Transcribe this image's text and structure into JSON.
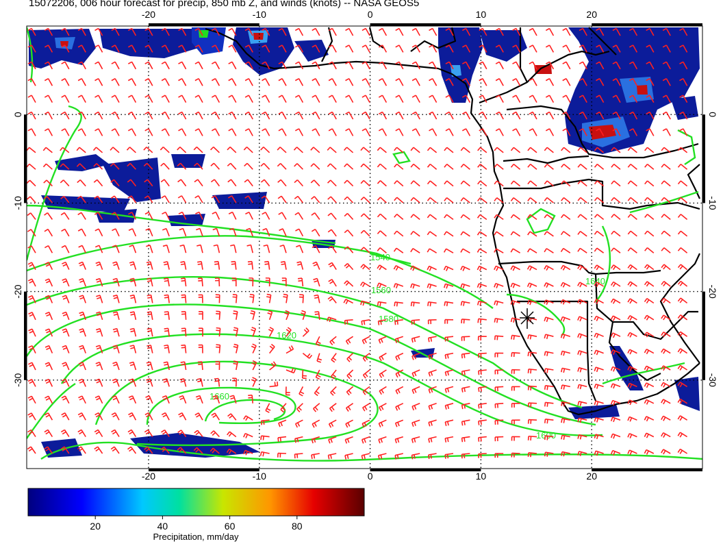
{
  "title": "15072206, 006 hour forecast for precip, 850 mb Z, and winds (knots) -- NASA GEOS5",
  "map": {
    "projection": "lat-lon",
    "lon_range": [
      -31,
      30
    ],
    "lat_range": [
      -40,
      10
    ],
    "lon_ticks": [
      "-20",
      "-10",
      "0",
      "10",
      "20"
    ],
    "lat_ticks": [
      "0",
      "-10",
      "-20",
      "-30"
    ],
    "gridlines": "dotted every 10 degrees",
    "contour_color": "#00ff00",
    "barb_color": "#ff0000",
    "land_outline_color": "#000000",
    "contour_labels": [
      "1540",
      "1560",
      "1580",
      "1600",
      "1620",
      "1640",
      "1660"
    ],
    "high_center_label": "1660",
    "marker": "asterisk near 15E 23S"
  },
  "colorbar": {
    "label": "Precipitation, mm/day",
    "ticks": [
      "20",
      "40",
      "60",
      "80"
    ],
    "range": [
      0,
      100
    ],
    "colors": [
      "#00007f",
      "#0000ff",
      "#00c8ff",
      "#00e0a0",
      "#c8e600",
      "#ff9600",
      "#e60000",
      "#5a0000"
    ]
  }
}
